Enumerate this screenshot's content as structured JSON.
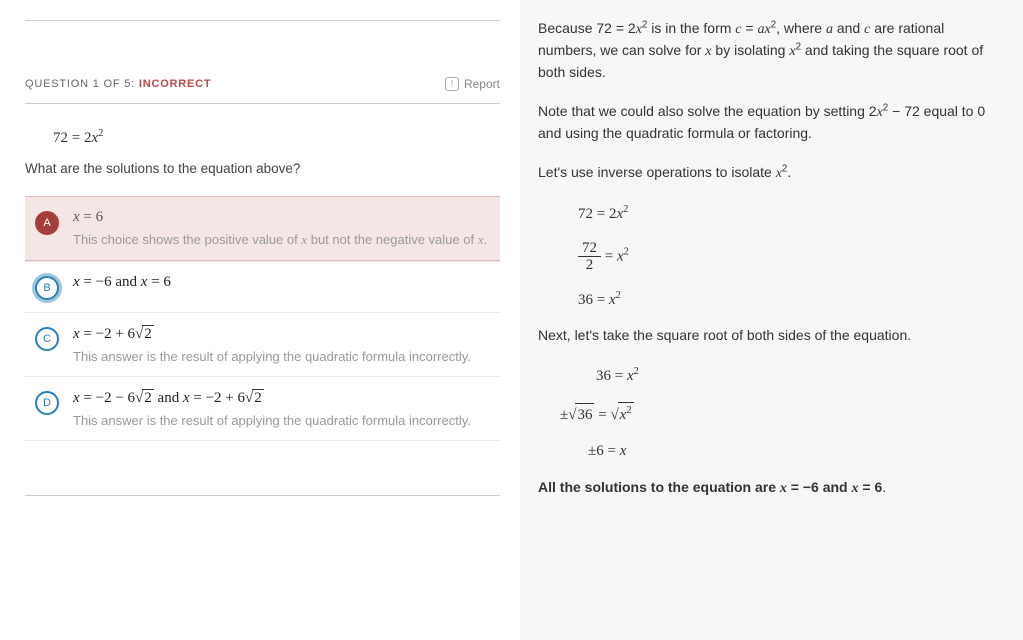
{
  "colors": {
    "incorrect": "#b84a48",
    "bubble_selected_bg": "#a33e3c",
    "bubble_border": "#2a7fb8",
    "panel_bg": "#f7f7f7",
    "choice_a_bg": "#f5e6e6"
  },
  "left": {
    "question_label_prefix": "QUESTION 1 OF 5: ",
    "question_status": "INCORRECT",
    "report_label": "Report",
    "equation_html": "72 = 2<span class='mi'>x</span><sup>2</sup>",
    "question_text": "What are the solutions to the equation above?",
    "choices": [
      {
        "letter": "A",
        "state": "selected-incorrect",
        "math_html": "<span class='mi'>x</span> = 6",
        "note": "This choice shows the positive value of x but not the negative value of x.",
        "note_html": "This choice shows the positive value of <span class='mi'>x</span> but not the negative value of <span class='mi'>x</span>."
      },
      {
        "letter": "B",
        "state": "correct-highlight",
        "math_html": "<span class='mi'>x</span> = −6 and <span class='mi'>x</span> = 6",
        "note": ""
      },
      {
        "letter": "C",
        "state": "default",
        "math_html": "<span class='mi'>x</span> = −2 + 6<span class='sqrt'><span class='radicand'>2</span></span>",
        "note": "This answer is the result of applying the quadratic formula incorrectly."
      },
      {
        "letter": "D",
        "state": "default",
        "math_html": "<span class='mi'>x</span> = −2 − 6<span class='sqrt'><span class='radicand'>2</span></span> and <span class='mi'>x</span> = −2 + 6<span class='sqrt'><span class='radicand'>2</span></span>",
        "note": "This answer is the result of applying the quadratic formula incorrectly."
      }
    ]
  },
  "right": {
    "para1_html": "Because 72 = 2<span class='mi'>x</span><sup>2</sup> is in the form <span class='mi'>c</span> = <span class='mi'>a</span><span class='mi'>x</span><sup>2</sup>, where <span class='mi'>a</span> and <span class='mi'>c</span> are rational numbers, we can solve for <span class='mi'>x</span> by isolating <span class='mi'>x</span><sup>2</sup> and taking the square root of both sides.",
    "para2_html": "Note that we could also solve the equation by setting 2<span class='mi'>x</span><sup>2</sup> − 72 equal to 0 and using the quadratic formula or factoring.",
    "para3_html": "Let's use inverse operations to isolate <span class='mi'>x</span><sup>2</sup>.",
    "eq_block1": [
      "72 = 2<span class='mi'>x</span><sup>2</sup>",
      "<span class='frac'><span class='num'>72</span><span class='den'>2</span></span> = <span class='mi'>x</span><sup>2</sup>",
      "36 = <span class='mi'>x</span><sup>2</sup>"
    ],
    "para4_html": "Next, let's take the square root of both sides of the equation.",
    "eq_block2": [
      "36 = <span class='mi'>x</span><sup>2</sup>",
      "±<span class='sqrt'><span class='radicand'>36</span></span> = <span class='sqrt'><span class='radicand'><span class='mi'>x</span><sup>2</sup></span></span>",
      "±6 = <span class='mi'>x</span>"
    ],
    "conclusion_html": "<span class='rp-bold'>All the solutions to the equation are <span class='mi'>x</span> = −6 and <span class='mi'>x</span> = 6</span>."
  }
}
